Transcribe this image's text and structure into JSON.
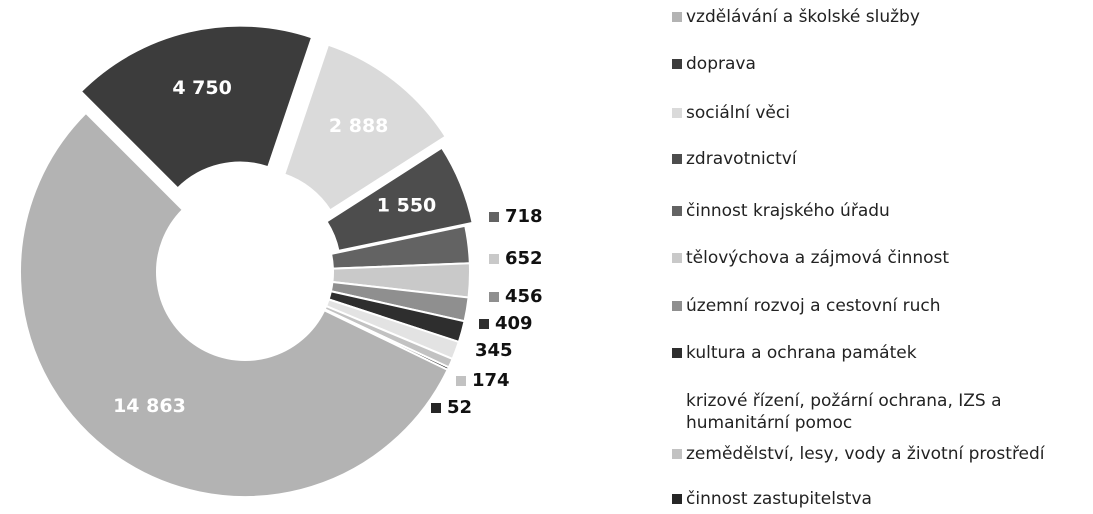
{
  "chart_data": {
    "type": "pie",
    "categories": [
      "vzdělávání a školské služby",
      "doprava",
      "sociální věci",
      "zdravotnictví",
      "činnost krajského úřadu",
      "tělovýchova a zájmová činnost",
      "územní rozvoj a cestovní ruch",
      "kultura a ochrana památek",
      "krizové řízení, požární ochrana, IZS a humanitární pomoc",
      "zemědělství, lesy, vody a životní prostředí",
      "činnost zastupitelstva"
    ],
    "values": [
      14863,
      4750,
      2888,
      1550,
      718,
      652,
      456,
      409,
      345,
      174,
      52
    ],
    "value_labels": [
      "14 863",
      "4 750",
      "2 888",
      "1 550",
      "718",
      "652",
      "456",
      "409",
      "345",
      "174",
      "52"
    ],
    "colors": [
      "#b3b3b3",
      "#3c3c3c",
      "#dadada",
      "#4d4d4d",
      "#636363",
      "#c9c9c9",
      "#8f8f8f",
      "#2e2e2e",
      "#e3e3e3",
      "#c2c2c2",
      "#262626"
    ]
  }
}
